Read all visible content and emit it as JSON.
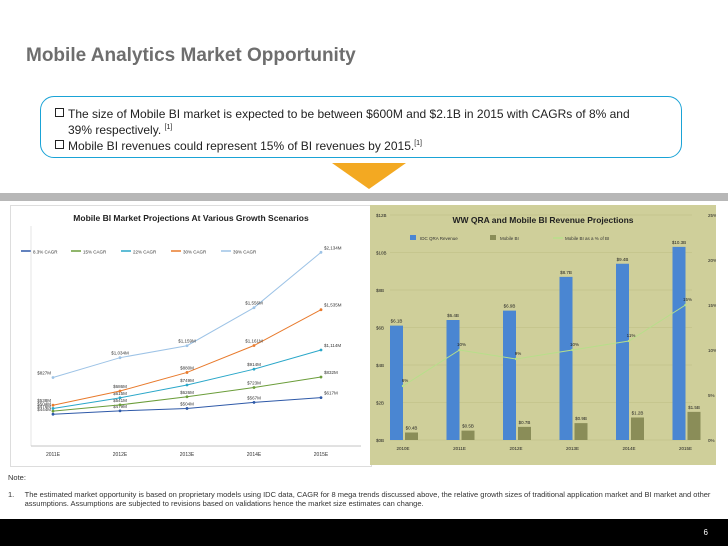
{
  "title": "Mobile Analytics Market Opportunity",
  "bullets": [
    {
      "text": "The size of Mobile BI market is expected to be between $600M and $2.1B in 2015 with CAGRs of 8% and",
      "text2": "39% respectively.",
      "ref": "[1]"
    },
    {
      "text": "Mobile BI revenues could represent 15% of BI revenues by 2015.",
      "ref": "[1]"
    }
  ],
  "colors": {
    "accent": "#1aa3d6",
    "arrow": "#f3a922",
    "panel_bg": "#cfcf9a"
  },
  "chart_data": [
    {
      "type": "line",
      "title": "Mobile BI Market Projections At Various Growth Scenarios",
      "categories": [
        "2011E",
        "2012E",
        "2013E",
        "2014E",
        "2015E"
      ],
      "series": [
        {
          "name": "8.3% CAGR",
          "color": "#2e59a8",
          "values": [
            444,
            479,
            504,
            567,
            617
          ],
          "labels": [
            "$444M",
            "$479M",
            "$504M",
            "$567M",
            "$617M"
          ]
        },
        {
          "name": "15% CAGR",
          "color": "#6b9d3a",
          "values": [
            476,
            541,
            626,
            723,
            832
          ],
          "labels": [
            "$476M",
            "$541M",
            "$626M",
            "$723M",
            "$832M"
          ]
        },
        {
          "name": "22% CAGR",
          "color": "#2aa7c9",
          "values": [
            504,
            615,
            749,
            914,
            1114
          ],
          "labels": [
            "$504M",
            "$615M",
            "$749M",
            "$914M",
            "$1,114M"
          ]
        },
        {
          "name": "30% CAGR",
          "color": "#e87a2c",
          "values": [
            538,
            686,
            880,
            1161,
            1535
          ],
          "labels": [
            "$538M",
            "$686M",
            "$880M",
            "$1,161M",
            "$1,535M"
          ]
        },
        {
          "name": "39% CAGR",
          "color": "#9dc3e6",
          "values": [
            827,
            1034,
            1159,
            1556,
            2134
          ],
          "labels": [
            "$827M",
            "$1,034M",
            "$1,159M",
            "$1,556M",
            "$2,134M"
          ]
        }
      ],
      "ylim": [
        300,
        2200
      ]
    },
    {
      "type": "bar",
      "title": "WW QRA and Mobile BI Revenue Projections",
      "categories": [
        "2010E",
        "2011E",
        "2012E",
        "2013E",
        "2014E",
        "2015E"
      ],
      "series": [
        {
          "name": "IDC QRA Revenue",
          "color": "#4a86d2",
          "values": [
            6.1,
            6.4,
            6.9,
            8.7,
            9.4,
            10.3
          ],
          "labels": [
            "$6.1B",
            "$6.4B",
            "$6.9B",
            "$8.7B",
            "$9.4B",
            "$10.3B"
          ]
        },
        {
          "name": "Mobile BI",
          "color": "#8a8d58",
          "values": [
            0.4,
            0.5,
            0.7,
            0.9,
            1.2,
            1.5
          ],
          "labels": [
            "$0.4B",
            "$0.5B",
            "$0.7B",
            "$0.9B",
            "$1.2B",
            "$1.5B"
          ]
        },
        {
          "name": "Mobile BI as a % of BI",
          "color": "#b7df8a",
          "values": [
            6,
            10,
            9,
            10,
            11,
            15
          ],
          "labels": [
            "6%",
            "10%",
            "9%",
            "10%",
            "11%",
            "15%"
          ]
        }
      ],
      "y_left": {
        "ticks": [
          "$0B",
          "$2B",
          "$4B",
          "$6B",
          "$8B",
          "$10B",
          "$12B"
        ],
        "ylim": [
          0,
          12
        ]
      },
      "y_right": {
        "ticks": [
          "0%",
          "5%",
          "10%",
          "15%",
          "20%",
          "25%"
        ],
        "ylim": [
          0,
          25
        ]
      }
    }
  ],
  "notes": {
    "heading": "Note:",
    "items": [
      {
        "num": "1.",
        "text": "The estimated market opportunity is based on proprietary models using IDC data, CAGR for 8 mega trends discussed above, the relative growth sizes of traditional application market and BI market and other assumptions. Assumptions are subjected to revisions based on validations hence the market size estimates can change."
      }
    ]
  },
  "page_number": "6"
}
